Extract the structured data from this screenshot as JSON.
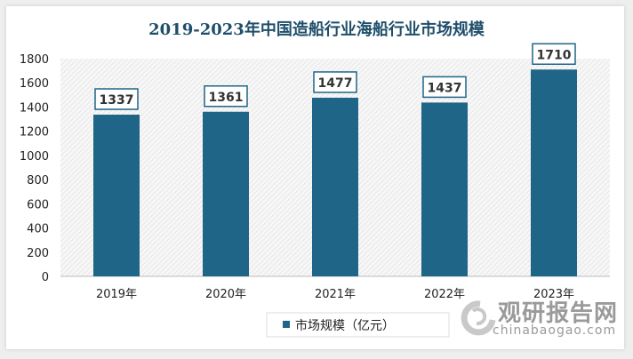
{
  "chart_data": {
    "type": "bar",
    "title": "2019-2023年中国造船行业海船行业市场规模",
    "categories": [
      "2019年",
      "2020年",
      "2021年",
      "2022年",
      "2023年"
    ],
    "series": [
      {
        "name": "市场规模（亿元）",
        "values": [
          1337,
          1361,
          1477,
          1437,
          1710
        ]
      }
    ],
    "ylim": [
      0,
      1800
    ],
    "yticks": [
      0,
      200,
      400,
      600,
      800,
      1000,
      1200,
      1400,
      1600,
      1800
    ],
    "xlabel": "",
    "ylabel": "",
    "grid": false,
    "legend": "bottom",
    "colors": {
      "bar": "#1f6587",
      "title": "#1f4e6b"
    }
  },
  "watermark": {
    "cn": "观研报告网",
    "en": "chinabaogao.com"
  }
}
